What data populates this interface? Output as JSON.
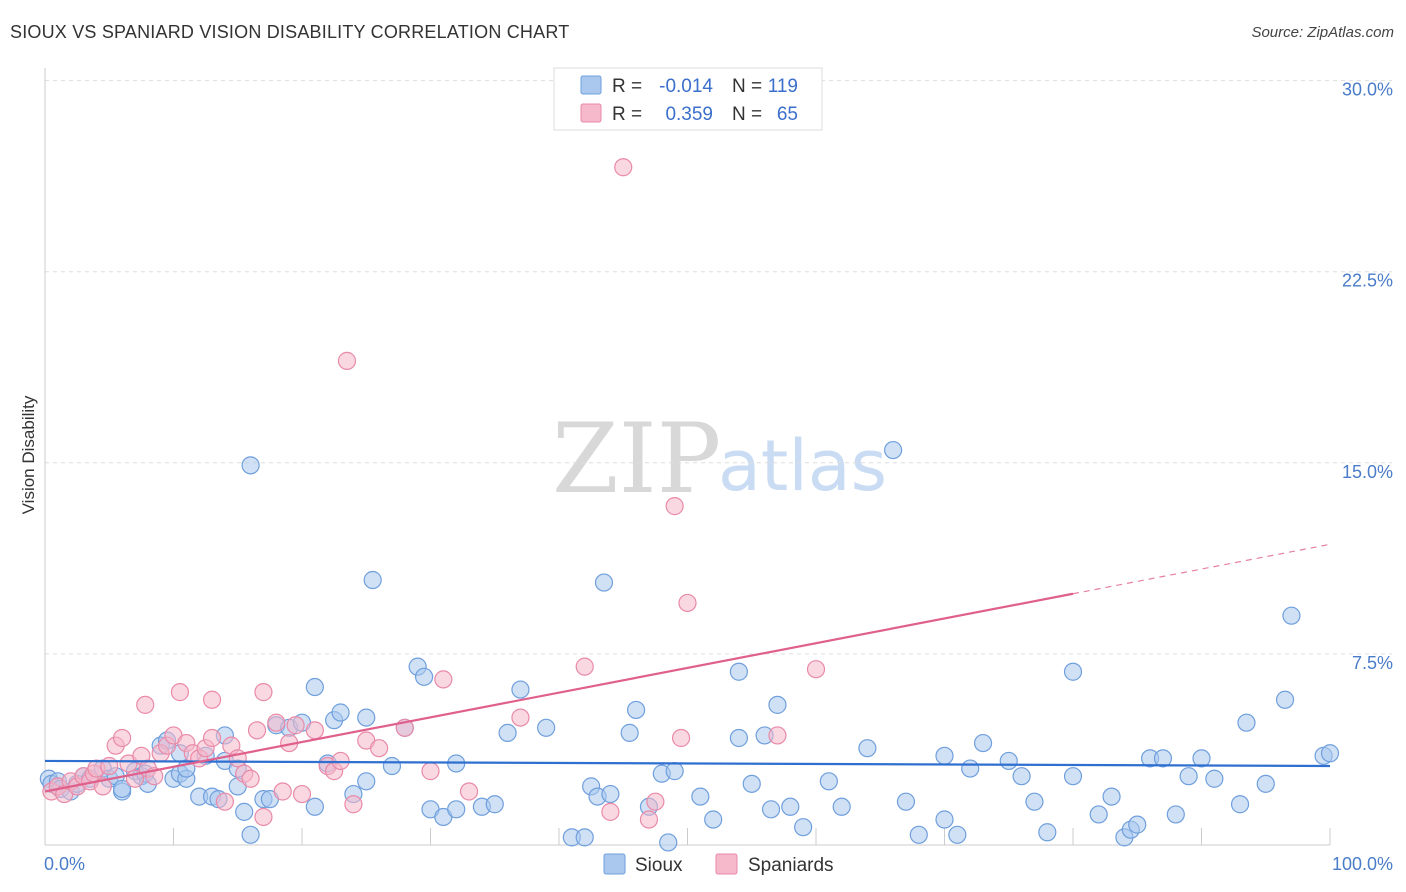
{
  "title": "SIOUX VS SPANIARD VISION DISABILITY CORRELATION CHART",
  "source": "Source: ZipAtlas.com",
  "watermark": {
    "zip": "ZIP",
    "atlas": "atlas"
  },
  "colors": {
    "sioux_fill": "#aac8ee",
    "sioux_stroke": "#6f9fdc",
    "sioux_line": "#2f6fd0",
    "span_fill": "#f6b8cb",
    "span_stroke": "#e98aa8",
    "span_line": "#e0608c",
    "axis_label": "#4a7cc9",
    "grid": "#dddddd"
  },
  "chart_data": {
    "type": "scatter",
    "xlabel": "",
    "ylabel": "Vision Disability",
    "xlim": [
      0,
      100
    ],
    "ylim": [
      0,
      30
    ],
    "x_tick_labels": [
      "0.0%",
      "100.0%"
    ],
    "y_ticks": [
      {
        "value": 7.5,
        "label": "7.5%"
      },
      {
        "value": 15.0,
        "label": "15.0%"
      },
      {
        "value": 22.5,
        "label": "22.5%"
      },
      {
        "value": 30.0,
        "label": "30.0%"
      }
    ],
    "legend": [
      {
        "r_label": "R =",
        "r": "-0.014",
        "n_label": "N =",
        "n": "119"
      },
      {
        "r_label": "R =",
        "r": "0.359",
        "n_label": "N =",
        "n": "65"
      }
    ],
    "series": [
      {
        "name": "Sioux",
        "trend": {
          "x0": 0,
          "y0": 3.3,
          "x1": 100,
          "y1": 3.1,
          "solid_to": 100
        },
        "points": [
          [
            0.3,
            2.6
          ],
          [
            0.5,
            2.4
          ],
          [
            1,
            2.5
          ],
          [
            1.2,
            2.2
          ],
          [
            2,
            2.1
          ],
          [
            2.5,
            2.4
          ],
          [
            3,
            2.7
          ],
          [
            3.5,
            2.6
          ],
          [
            4.5,
            3.0
          ],
          [
            5,
            2.6
          ],
          [
            5.5,
            2.7
          ],
          [
            6,
            2.1
          ],
          [
            6,
            2.2
          ],
          [
            7,
            2.9
          ],
          [
            7.5,
            2.7
          ],
          [
            7.8,
            2.8
          ],
          [
            8,
            2.4
          ],
          [
            9,
            3.9
          ],
          [
            9.5,
            4.1
          ],
          [
            10,
            2.6
          ],
          [
            10.5,
            3.6
          ],
          [
            10.5,
            2.8
          ],
          [
            11,
            2.6
          ],
          [
            11,
            3.0
          ],
          [
            12,
            1.9
          ],
          [
            12.5,
            3.5
          ],
          [
            13,
            1.9
          ],
          [
            13.5,
            1.8
          ],
          [
            14,
            4.3
          ],
          [
            14,
            3.3
          ],
          [
            15,
            3.0
          ],
          [
            15,
            2.3
          ],
          [
            15.5,
            1.3
          ],
          [
            16,
            14.9
          ],
          [
            16,
            0.4
          ],
          [
            17,
            1.8
          ],
          [
            17.5,
            1.8
          ],
          [
            18,
            4.7
          ],
          [
            19,
            4.6
          ],
          [
            20,
            4.8
          ],
          [
            21,
            6.2
          ],
          [
            21,
            1.5
          ],
          [
            22,
            3.2
          ],
          [
            22.5,
            4.9
          ],
          [
            23,
            5.2
          ],
          [
            24,
            2.0
          ],
          [
            25,
            2.5
          ],
          [
            25,
            5.0
          ],
          [
            25.5,
            10.4
          ],
          [
            27,
            3.1
          ],
          [
            28,
            4.6
          ],
          [
            29,
            7.0
          ],
          [
            29.5,
            6.6
          ],
          [
            30,
            1.4
          ],
          [
            31,
            1.1
          ],
          [
            32,
            1.4
          ],
          [
            32,
            3.2
          ],
          [
            34,
            1.5
          ],
          [
            35,
            1.6
          ],
          [
            36,
            4.4
          ],
          [
            37,
            6.1
          ],
          [
            39,
            4.6
          ],
          [
            41,
            0.3
          ],
          [
            42,
            0.3
          ],
          [
            42.5,
            2.3
          ],
          [
            43,
            1.9
          ],
          [
            43.5,
            10.3
          ],
          [
            44,
            2.0
          ],
          [
            45.5,
            4.4
          ],
          [
            46,
            5.3
          ],
          [
            47,
            1.5
          ],
          [
            48,
            2.8
          ],
          [
            48.5,
            0.1
          ],
          [
            49,
            2.9
          ],
          [
            51,
            1.9
          ],
          [
            52,
            1.0
          ],
          [
            54,
            4.2
          ],
          [
            54,
            6.8
          ],
          [
            55,
            2.4
          ],
          [
            56,
            4.3
          ],
          [
            56.5,
            1.4
          ],
          [
            57,
            5.5
          ],
          [
            58,
            1.5
          ],
          [
            59,
            0.7
          ],
          [
            61,
            2.5
          ],
          [
            62,
            1.5
          ],
          [
            64,
            3.8
          ],
          [
            66,
            15.5
          ],
          [
            67,
            1.7
          ],
          [
            68,
            0.4
          ],
          [
            70,
            1.0
          ],
          [
            70,
            3.5
          ],
          [
            71,
            0.4
          ],
          [
            72,
            3.0
          ],
          [
            73,
            4.0
          ],
          [
            75,
            3.3
          ],
          [
            76,
            2.7
          ],
          [
            77,
            1.7
          ],
          [
            78,
            0.5
          ],
          [
            80,
            2.7
          ],
          [
            80,
            6.8
          ],
          [
            82,
            1.2
          ],
          [
            83,
            1.9
          ],
          [
            84,
            0.3
          ],
          [
            84.5,
            0.6
          ],
          [
            85,
            0.8
          ],
          [
            86,
            3.4
          ],
          [
            87,
            3.4
          ],
          [
            88,
            1.2
          ],
          [
            89,
            2.7
          ],
          [
            90,
            3.4
          ],
          [
            91,
            2.6
          ],
          [
            93,
            1.6
          ],
          [
            93.5,
            4.8
          ],
          [
            95,
            2.4
          ],
          [
            96.5,
            5.7
          ],
          [
            97,
            9.0
          ],
          [
            99.5,
            3.5
          ],
          [
            100,
            3.6
          ]
        ]
      },
      {
        "name": "Spaniards",
        "trend": {
          "x0": 0,
          "y0": 2.1,
          "x1": 100,
          "y1": 11.8,
          "solid_to": 80
        },
        "points": [
          [
            0.5,
            2.1
          ],
          [
            1,
            2.3
          ],
          [
            1.5,
            2.0
          ],
          [
            2,
            2.5
          ],
          [
            2.5,
            2.3
          ],
          [
            3,
            2.7
          ],
          [
            3.5,
            2.5
          ],
          [
            3.8,
            2.8
          ],
          [
            4,
            3.0
          ],
          [
            4.5,
            2.3
          ],
          [
            5,
            3.1
          ],
          [
            5.5,
            3.9
          ],
          [
            6,
            4.2
          ],
          [
            6.5,
            3.2
          ],
          [
            7,
            2.6
          ],
          [
            7.5,
            3.5
          ],
          [
            7.8,
            5.5
          ],
          [
            8,
            3.0
          ],
          [
            8.5,
            2.7
          ],
          [
            9,
            3.6
          ],
          [
            9.5,
            3.9
          ],
          [
            10,
            4.3
          ],
          [
            10.5,
            6.0
          ],
          [
            11,
            4.0
          ],
          [
            11.5,
            3.6
          ],
          [
            12,
            3.4
          ],
          [
            12.5,
            3.8
          ],
          [
            13,
            4.2
          ],
          [
            13,
            5.7
          ],
          [
            14,
            1.7
          ],
          [
            14.5,
            3.9
          ],
          [
            15,
            3.4
          ],
          [
            15.5,
            2.8
          ],
          [
            16,
            2.6
          ],
          [
            16.5,
            4.5
          ],
          [
            17,
            1.1
          ],
          [
            17,
            6.0
          ],
          [
            18,
            4.8
          ],
          [
            18.5,
            2.1
          ],
          [
            19,
            4.0
          ],
          [
            19.5,
            4.7
          ],
          [
            20,
            2.0
          ],
          [
            21,
            4.5
          ],
          [
            22,
            3.1
          ],
          [
            22.5,
            2.9
          ],
          [
            23,
            3.3
          ],
          [
            23.5,
            19.0
          ],
          [
            24,
            1.6
          ],
          [
            25,
            4.1
          ],
          [
            26,
            3.8
          ],
          [
            28,
            4.6
          ],
          [
            30,
            2.9
          ],
          [
            31,
            6.5
          ],
          [
            33,
            2.1
          ],
          [
            37,
            5.0
          ],
          [
            42,
            7.0
          ],
          [
            44,
            1.3
          ],
          [
            45,
            26.6
          ],
          [
            47,
            1.0
          ],
          [
            47.5,
            1.7
          ],
          [
            49,
            13.3
          ],
          [
            49.5,
            4.2
          ],
          [
            50,
            9.5
          ],
          [
            57,
            4.3
          ],
          [
            60,
            6.9
          ]
        ]
      }
    ]
  }
}
